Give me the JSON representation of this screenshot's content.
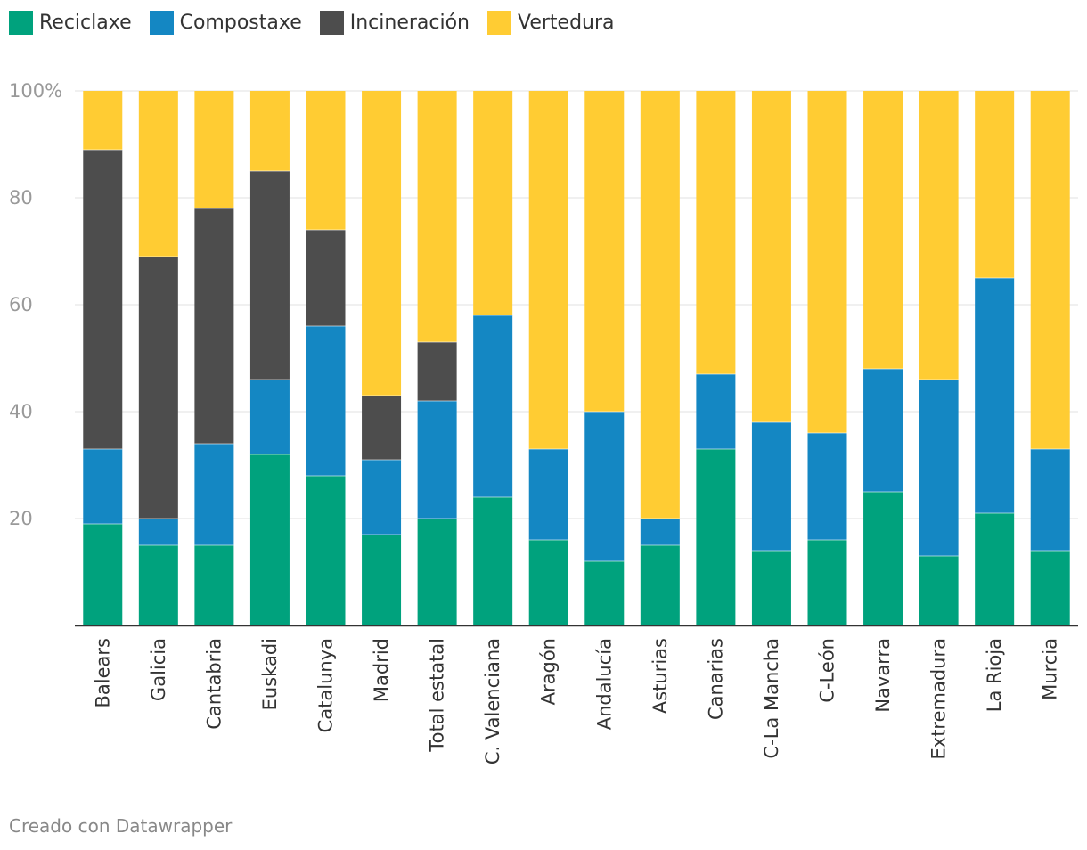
{
  "chart_data": {
    "type": "bar",
    "stacked": true,
    "categories": [
      "Balears",
      "Galicia",
      "Cantabria",
      "Euskadi",
      "Catalunya",
      "Madrid",
      "Total estatal",
      "C. Valenciana",
      "Aragón",
      "Andalucía",
      "Asturias",
      "Canarias",
      "C-La Mancha",
      "C-León",
      "Navarra",
      "Extremadura",
      "La Rioja",
      "Murcia"
    ],
    "series": [
      {
        "name": "Reciclaxe",
        "color": "#00a27d",
        "values": [
          19,
          15,
          15,
          32,
          28,
          17,
          20,
          24,
          16,
          12,
          15,
          33,
          14,
          16,
          25,
          13,
          21,
          14
        ]
      },
      {
        "name": "Compostaxe",
        "color": "#1487c3",
        "values": [
          14,
          5,
          19,
          14,
          28,
          14,
          22,
          34,
          17,
          28,
          5,
          14,
          24,
          20,
          23,
          33,
          44,
          19
        ]
      },
      {
        "name": "Incineración",
        "color": "#4d4d4d",
        "values": [
          56,
          49,
          44,
          39,
          18,
          12,
          11,
          0,
          0,
          0,
          0,
          0,
          0,
          0,
          0,
          0,
          0,
          0
        ]
      },
      {
        "name": "Vertedura",
        "color": "#ffcc33",
        "values": [
          11,
          31,
          22,
          15,
          26,
          57,
          47,
          42,
          67,
          60,
          80,
          53,
          62,
          64,
          52,
          54,
          35,
          67
        ]
      }
    ],
    "yticks": [
      "20",
      "40",
      "60",
      "80",
      "100%"
    ],
    "ytick_values": [
      20,
      40,
      60,
      80,
      100
    ],
    "ylim": [
      0,
      100
    ],
    "title": "",
    "xlabel": "",
    "ylabel": ""
  },
  "footer": "Creado con Datawrapper"
}
